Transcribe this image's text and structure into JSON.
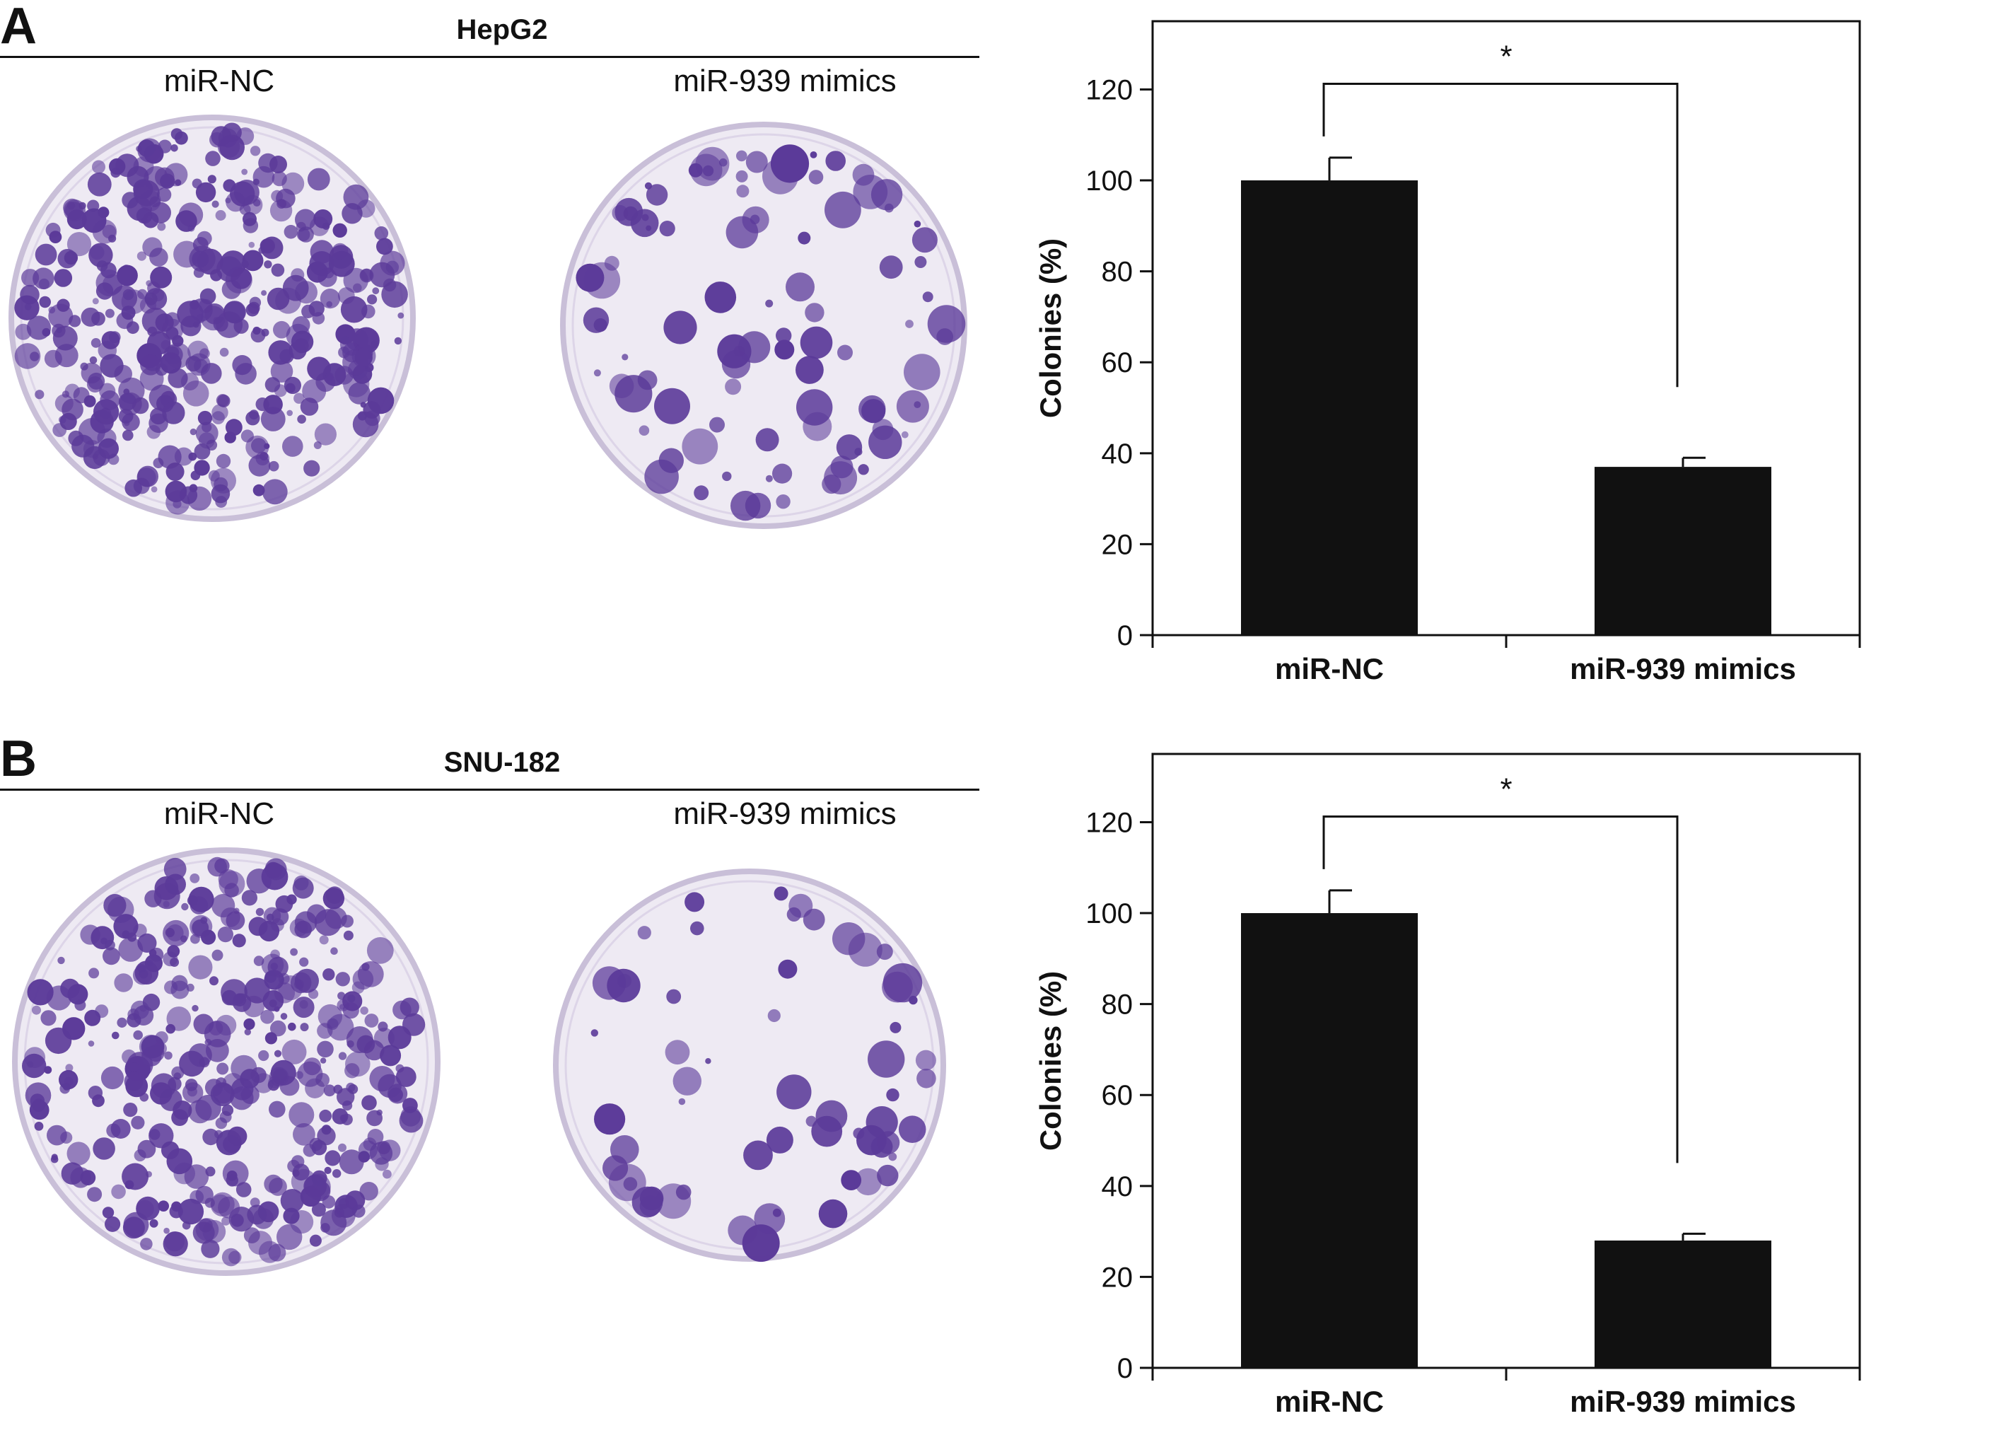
{
  "panels": [
    {
      "letter": "A",
      "cell_line": "HepG2",
      "conditions": [
        "miR-NC",
        "miR-939 mimics"
      ]
    },
    {
      "letter": "B",
      "cell_line": "SNU-182",
      "conditions": [
        "miR-NC",
        "miR-939 mimics"
      ]
    }
  ],
  "colors": {
    "bar": "#111111",
    "stain": "#5b3a99",
    "dish_bg": "#eeeaf3"
  },
  "chart_data": [
    {
      "type": "bar",
      "categories": [
        "miR-NC",
        "miR-939 mimics"
      ],
      "values": [
        100,
        37
      ],
      "error": [
        5,
        2
      ],
      "ylabel": "Colonies (%)",
      "xlabel": "",
      "ylim": [
        0,
        135
      ],
      "yticks": [
        0,
        20,
        40,
        60,
        80,
        100,
        120
      ],
      "significance": "*"
    },
    {
      "type": "bar",
      "categories": [
        "miR-NC",
        "miR-939 mimics"
      ],
      "values": [
        100,
        28
      ],
      "error": [
        5,
        1.5
      ],
      "ylabel": "Colonies (%)",
      "xlabel": "",
      "ylim": [
        0,
        135
      ],
      "yticks": [
        0,
        20,
        40,
        60,
        80,
        100,
        120
      ],
      "significance": "*"
    }
  ]
}
